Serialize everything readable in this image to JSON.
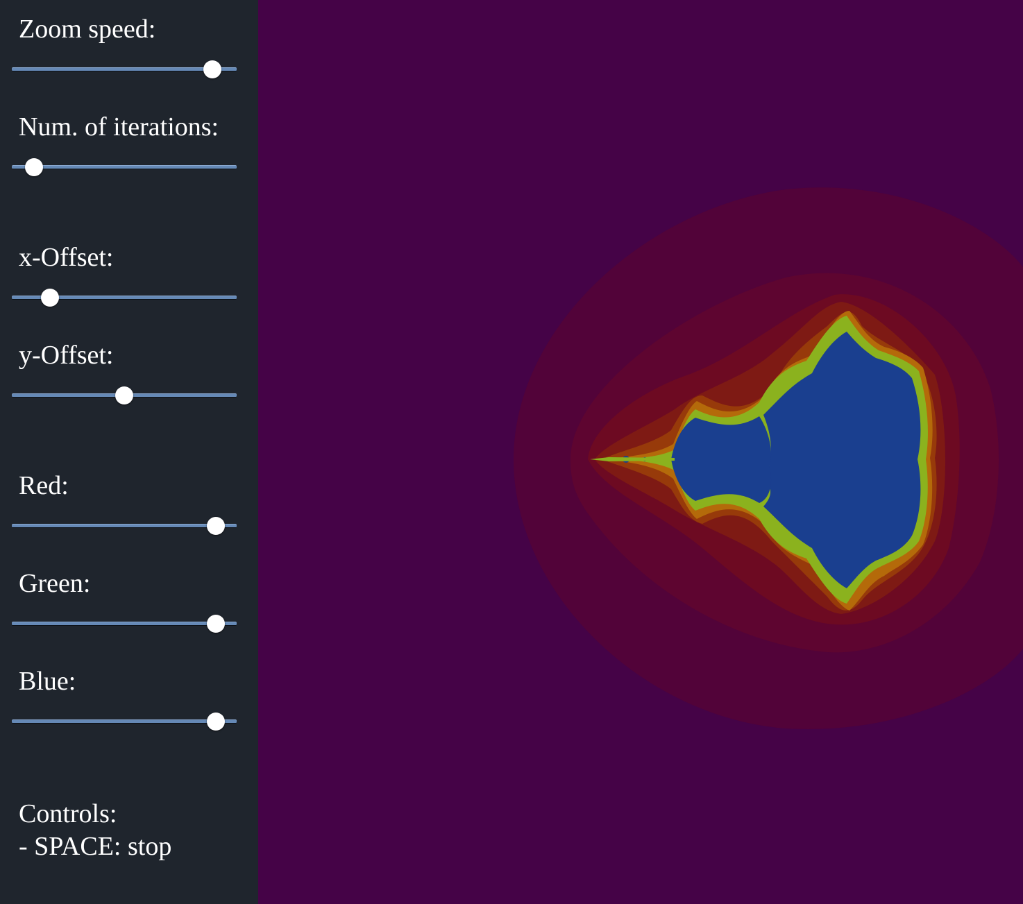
{
  "controls": [
    {
      "id": "zoom-speed",
      "label": "Zoom speed:",
      "value": 0.94
    },
    {
      "id": "iterations",
      "label": "Num. of iterations:",
      "value": 0.05
    },
    {
      "id": "x-offset",
      "label": "x-Offset:",
      "value": 0.13
    },
    {
      "id": "y-offset",
      "label": "y-Offset:",
      "value": 0.5
    },
    {
      "id": "red",
      "label": "Red:",
      "value": 0.96
    },
    {
      "id": "green",
      "label": "Green:",
      "value": 0.96
    },
    {
      "id": "blue",
      "label": "Blue:",
      "value": 0.96
    }
  ],
  "help": {
    "title": "Controls:",
    "line1": "- SPACE: stop"
  },
  "colors": {
    "sidebar_bg": "#1f252d",
    "canvas_bg": "#450347",
    "slider_track": "#6589b6",
    "slider_thumb": "#ffffff",
    "set_interior": "#1a3f8f",
    "band_outer": "#520339",
    "band_2": "#5e0530",
    "band_3": "#6d0a22",
    "band_4": "#7e1a14",
    "band_5": "#973a0a",
    "band_6": "#b46a0a",
    "band_edge": "#8bb21e"
  }
}
